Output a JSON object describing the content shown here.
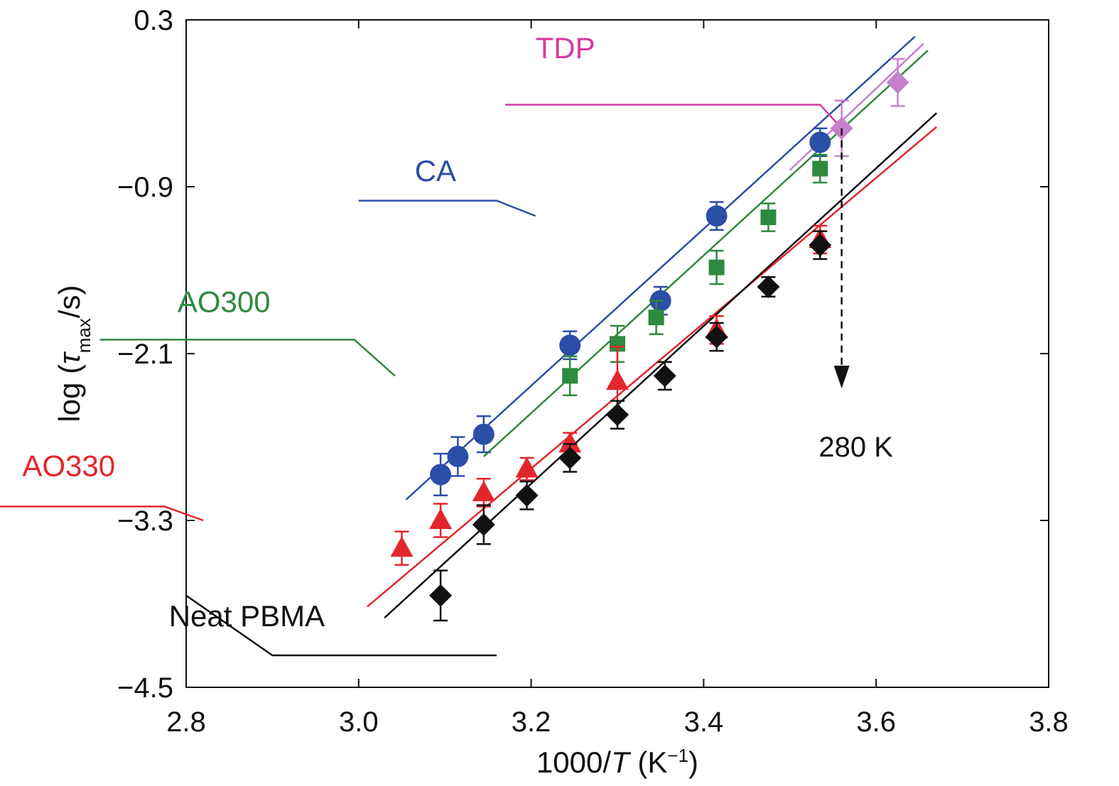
{
  "chart_data": {
    "type": "scatter",
    "xlabel_parts": [
      "1000/",
      "T",
      " (K",
      "−1",
      ")"
    ],
    "ylabel_parts": [
      "log (",
      "τ",
      "max",
      "/s)"
    ],
    "xlim": [
      2.8,
      3.8
    ],
    "ylim": [
      -4.5,
      0.3
    ],
    "xticks": [
      2.8,
      3.0,
      3.2,
      3.4,
      3.6,
      3.8
    ],
    "xtick_labels": [
      "2.8",
      "3.0",
      "3.2",
      "3.4",
      "3.6",
      "3.8"
    ],
    "yticks": [
      0.3,
      -0.9,
      -2.1,
      -3.3,
      -4.5
    ],
    "ytick_labels": [
      "0.3",
      "−0.9",
      "−2.1",
      "−3.3",
      "−4.5"
    ],
    "grid": false,
    "legend": "none",
    "series": [
      {
        "name": "CA",
        "color": "#2b4ea6",
        "marker": "circle",
        "x": [
          3.095,
          3.115,
          3.145,
          3.245,
          3.35,
          3.415,
          3.535
        ],
        "y": [
          -2.97,
          -2.84,
          -2.68,
          -2.04,
          -1.72,
          -1.11,
          -0.58
        ],
        "err": [
          0.15,
          0.14,
          0.13,
          0.1,
          0.1,
          0.1,
          0.1
        ],
        "fit": [
          [
            3.055,
            -3.15
          ],
          [
            3.645,
            0.18
          ]
        ]
      },
      {
        "name": "AO300",
        "color": "#2e8a3e",
        "marker": "square",
        "x": [
          3.245,
          3.3,
          3.345,
          3.415,
          3.475,
          3.535
        ],
        "y": [
          -2.26,
          -2.03,
          -1.84,
          -1.48,
          -1.12,
          -0.77
        ],
        "err": [
          0.14,
          0.13,
          0.12,
          0.12,
          0.1,
          0.1
        ],
        "fit": [
          [
            3.145,
            -2.84
          ],
          [
            3.66,
            0.08
          ]
        ]
      },
      {
        "name": "AO330",
        "color": "#e3262b",
        "marker": "triangle",
        "x": [
          3.05,
          3.095,
          3.145,
          3.195,
          3.245,
          3.3,
          3.415,
          3.535
        ],
        "y": [
          -3.5,
          -3.3,
          -3.1,
          -2.93,
          -2.75,
          -2.3,
          -1.93,
          -1.28
        ],
        "err": [
          0.12,
          0.12,
          0.1,
          0.08,
          0.08,
          0.25,
          0.1,
          0.1
        ],
        "fit": [
          [
            3.01,
            -3.92
          ],
          [
            3.67,
            -0.47
          ]
        ]
      },
      {
        "name": "Neat PBMA",
        "color": "#111111",
        "marker": "diamond",
        "x": [
          3.095,
          3.145,
          3.195,
          3.245,
          3.3,
          3.355,
          3.415,
          3.475,
          3.535
        ],
        "y": [
          -3.84,
          -3.33,
          -3.12,
          -2.85,
          -2.54,
          -2.26,
          -1.98,
          -1.62,
          -1.32
        ],
        "err": [
          0.18,
          0.14,
          0.1,
          0.1,
          0.1,
          0.1,
          0.1,
          0.07,
          0.1
        ],
        "fit": [
          [
            3.03,
            -4.0
          ],
          [
            3.67,
            -0.37
          ]
        ]
      },
      {
        "name": "TDP",
        "color": "#c77fd0",
        "marker": "diamond",
        "x": [
          3.56,
          3.625
        ],
        "y": [
          -0.48,
          -0.15
        ],
        "err": [
          0.2,
          0.17
        ],
        "fit": [
          [
            3.5,
            -0.78
          ],
          [
            3.655,
            0.13
          ]
        ]
      }
    ],
    "series_labels": [
      {
        "text": "TDP",
        "color": "#d63ba0",
        "at": [
          3.205,
          0.025
        ],
        "leader": [
          [
            3.17,
            -0.31
          ],
          [
            3.535,
            -0.31
          ],
          [
            3.56,
            -0.48
          ]
        ]
      },
      {
        "text": "CA",
        "color": "#2b4ea6",
        "at": [
          3.065,
          -0.86
        ],
        "leader": [
          [
            3.0,
            -1.0
          ],
          [
            3.16,
            -1.0
          ],
          [
            3.205,
            -1.11
          ]
        ]
      },
      {
        "text": "AO300",
        "color": "#2e8a3e",
        "at": [
          2.79,
          -1.8
        ],
        "leader": [
          [
            2.7,
            -2.0
          ],
          [
            2.995,
            -2.0
          ],
          [
            3.042,
            -2.26
          ]
        ]
      },
      {
        "text": "AO330",
        "color": "#e3262b",
        "at": [
          2.61,
          -2.98
        ],
        "leader": [
          [
            2.535,
            -3.2
          ],
          [
            2.775,
            -3.2
          ],
          [
            2.82,
            -3.3
          ]
        ]
      },
      {
        "text": "Neat PBMA",
        "color": "#111111",
        "at": [
          2.78,
          -4.06
        ],
        "leader": [
          [
            2.8,
            -3.84
          ],
          [
            2.9,
            -4.27
          ],
          [
            3.16,
            -4.27
          ]
        ]
      }
    ],
    "annotation": {
      "text": "280 K",
      "at_x": 3.56,
      "from_y": -0.48,
      "to_y": -2.35,
      "label_y": -2.84
    }
  }
}
